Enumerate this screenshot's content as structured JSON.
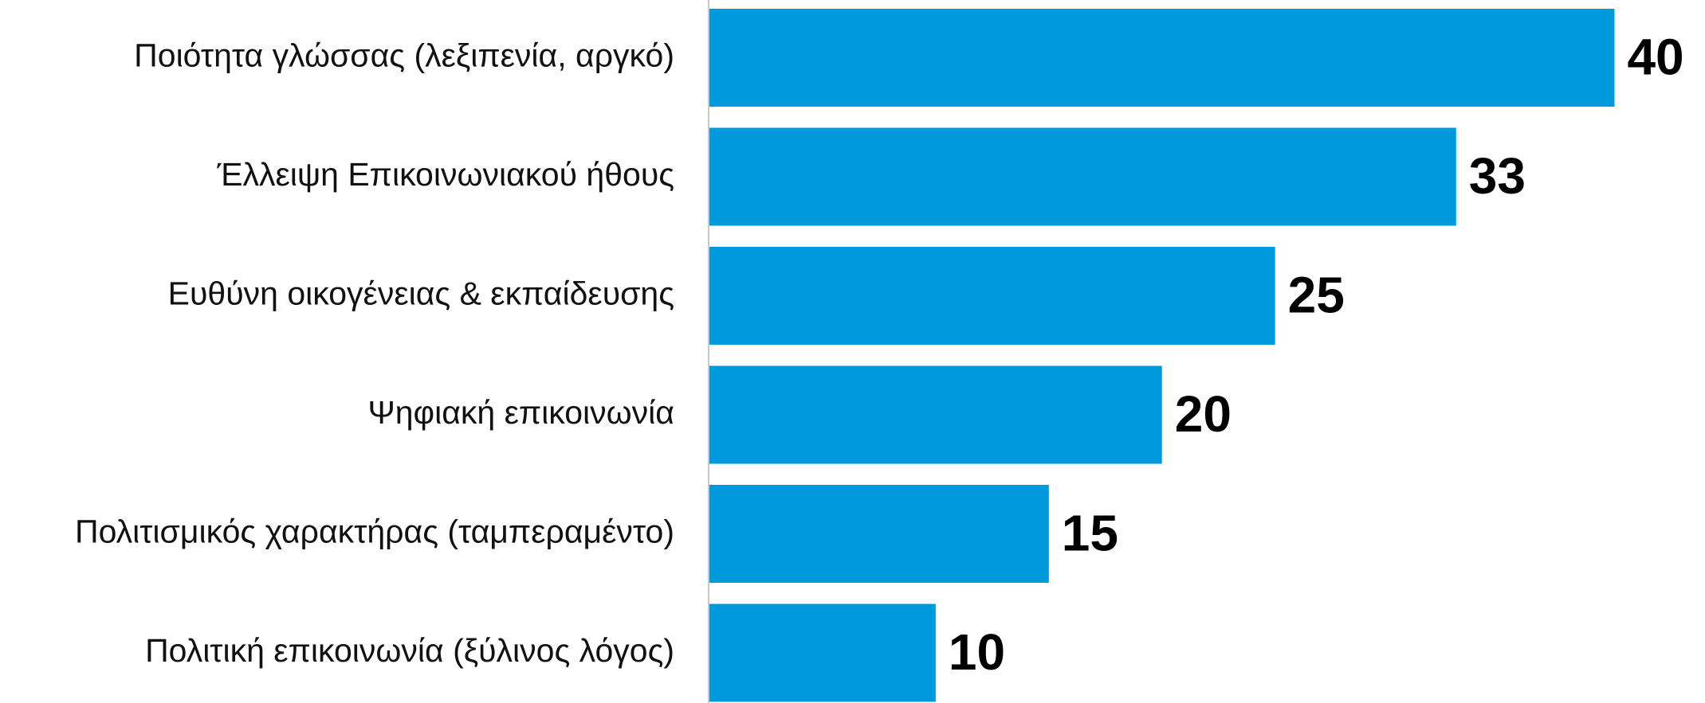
{
  "chart_data": {
    "type": "barh",
    "categories": [
      "Ποιότητα γλώσσας (λεξιπενία, αργκό)",
      "Έλλειψη Επικοινωνιακού ήθους",
      "Ευθύνη οικογένειας & εκπαίδευσης",
      "Ψηφιακή επικοινωνία",
      "Πολιτισμικός χαρακτήρας (ταμπεραμέντο)",
      "Πολιτική επικοινωνία (ξύλινος λόγος)"
    ],
    "values": [
      40,
      33,
      25,
      20,
      15,
      10
    ],
    "color": "#0099db",
    "xlim": [
      0,
      44
    ]
  }
}
